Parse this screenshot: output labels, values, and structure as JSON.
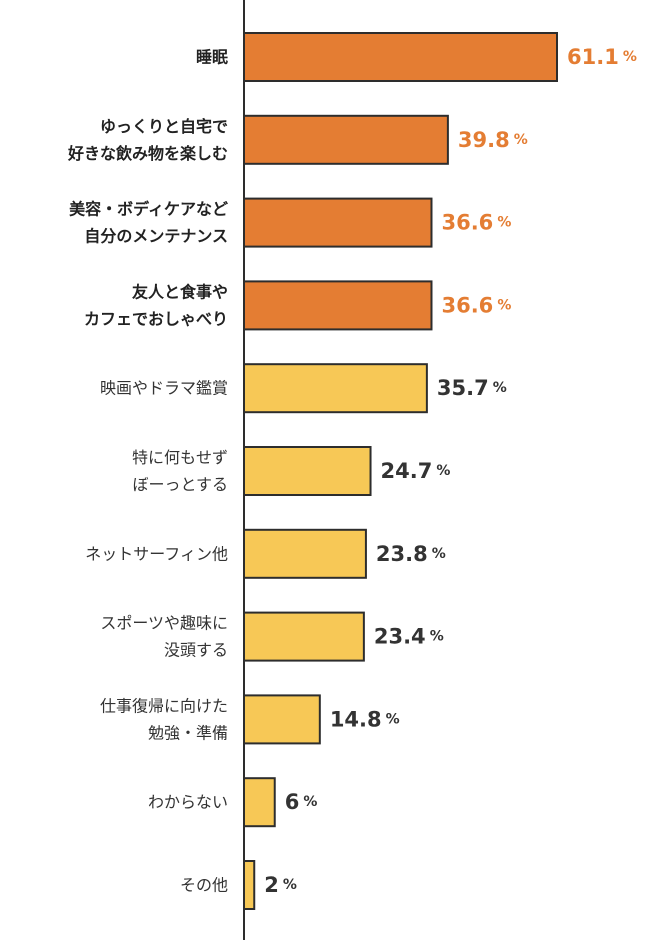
{
  "chart_data": {
    "type": "bar",
    "orientation": "horizontal",
    "categories": [
      {
        "lines": [
          "睡眠"
        ],
        "highlight": true
      },
      {
        "lines": [
          "ゆっくりと自宅で",
          "好きな飲み物を楽しむ"
        ],
        "highlight": true
      },
      {
        "lines": [
          "美容・ボディケアなど",
          "自分のメンテナンス"
        ],
        "highlight": true
      },
      {
        "lines": [
          "友人と食事や",
          "カフェでおしゃべり"
        ],
        "highlight": true
      },
      {
        "lines": [
          "映画やドラマ鑑賞"
        ],
        "highlight": false
      },
      {
        "lines": [
          "特に何もせず",
          "ぼーっとする"
        ],
        "highlight": false
      },
      {
        "lines": [
          "ネットサーフィン他"
        ],
        "highlight": false
      },
      {
        "lines": [
          "スポーツや趣味に",
          "没頭する"
        ],
        "highlight": false
      },
      {
        "lines": [
          "仕事復帰に向けた",
          "勉強・準備"
        ],
        "highlight": false
      },
      {
        "lines": [
          "わからない"
        ],
        "highlight": false
      },
      {
        "lines": [
          "その他"
        ],
        "highlight": false
      }
    ],
    "values": [
      61.1,
      39.8,
      36.6,
      36.6,
      35.7,
      24.7,
      23.8,
      23.4,
      14.8,
      6,
      2
    ],
    "value_labels": [
      "61.1",
      "39.8",
      "36.6",
      "36.6",
      "35.7",
      "24.7",
      "23.8",
      "23.4",
      "14.8",
      "6",
      "2"
    ],
    "unit": "%",
    "xlim": [
      0,
      61.1
    ],
    "grid": false,
    "legend": "none",
    "colors": {
      "highlight_bar": "#e47d33",
      "normal_bar": "#f7c856",
      "bar_border": "#2d2d2d",
      "highlight_text": "#e47d33",
      "normal_text": "#333333",
      "axis": "#2d2d2d"
    }
  }
}
